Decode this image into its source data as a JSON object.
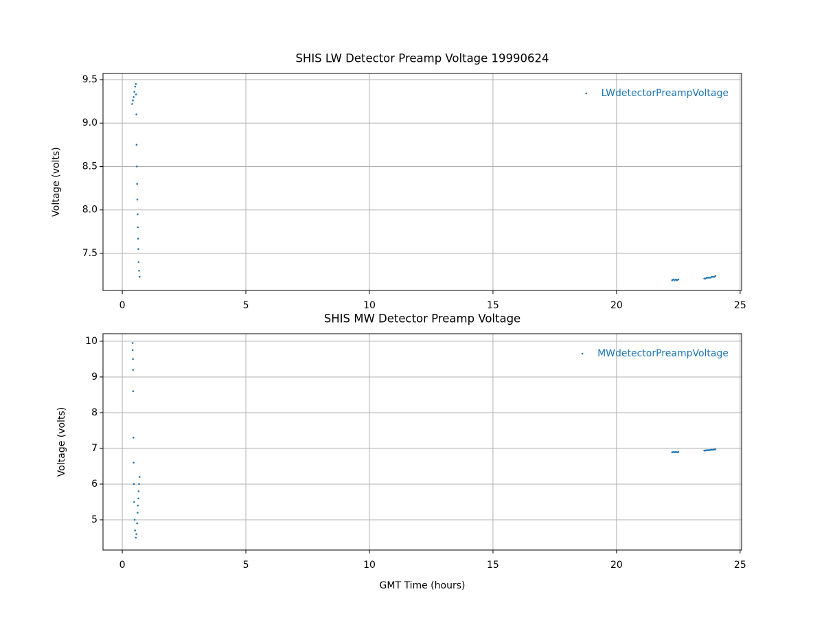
{
  "chart_data": [
    {
      "type": "scatter",
      "title": "SHIS LW Detector Preamp Voltage 19990624",
      "ylabel": "Voltage (volts)",
      "xlim": [
        -0.78,
        25.06
      ],
      "xticks": [
        0,
        5,
        10,
        15,
        20,
        25
      ],
      "ylim": [
        7.073,
        9.571
      ],
      "yticks": [
        7.5,
        {
          "value": 8,
          "label": "8.0"
        },
        8.5,
        {
          "value": 9,
          "label": "9.0"
        },
        9.5
      ],
      "grid": true,
      "legend": "upper right",
      "x": [
        0.4,
        0.43,
        0.46,
        0.49,
        0.52,
        0.55,
        0.56,
        0.57,
        0.58,
        0.59,
        0.6,
        0.61,
        0.62,
        0.63,
        0.64,
        0.65,
        0.66,
        0.68,
        0.7,
        22.25,
        22.3,
        22.35,
        22.4,
        22.45,
        22.5,
        23.55,
        23.6,
        23.65,
        23.7,
        23.75,
        23.8,
        23.85,
        23.9,
        23.95,
        24.0
      ],
      "series": [
        {
          "name": "LWdetectorPreampVoltage",
          "color": "#1f77b4",
          "values": [
            9.22,
            9.26,
            9.3,
            9.36,
            9.42,
            9.45,
            9.33,
            9.1,
            8.75,
            8.5,
            8.3,
            8.12,
            7.95,
            7.8,
            7.67,
            7.55,
            7.4,
            7.3,
            7.23,
            7.19,
            7.2,
            7.19,
            7.2,
            7.19,
            7.2,
            7.21,
            7.21,
            7.22,
            7.22,
            7.22,
            7.22,
            7.23,
            7.23,
            7.23,
            7.24
          ]
        }
      ]
    },
    {
      "type": "scatter",
      "title": "SHIS MW Detector Preamp Voltage",
      "ylabel": "Voltage (volts)",
      "xlabel": "GMT Time (hours)",
      "xlim": [
        -0.78,
        25.06
      ],
      "xticks": [
        0,
        5,
        10,
        15,
        20,
        25
      ],
      "ylim": [
        4.154,
        10.21
      ],
      "yticks": [
        5,
        6,
        7,
        8,
        9,
        10
      ],
      "grid": true,
      "legend": "upper right",
      "x": [
        0.42,
        0.42,
        0.43,
        0.44,
        0.44,
        0.45,
        0.46,
        0.47,
        0.48,
        0.5,
        0.52,
        0.55,
        0.57,
        0.6,
        0.62,
        0.63,
        0.65,
        0.66,
        0.68,
        0.7,
        22.25,
        22.3,
        22.35,
        22.4,
        22.45,
        22.5,
        23.55,
        23.6,
        23.65,
        23.7,
        23.75,
        23.8,
        23.85,
        23.9,
        23.95,
        24.0
      ],
      "series": [
        {
          "name": "MWdetectorPreampVoltage",
          "color": "#1f77b4",
          "values": [
            9.95,
            9.75,
            9.5,
            9.2,
            8.6,
            7.3,
            6.6,
            6.0,
            5.5,
            5.0,
            4.7,
            4.5,
            4.6,
            4.9,
            5.2,
            5.4,
            5.6,
            5.8,
            6.0,
            6.2,
            6.89,
            6.9,
            6.89,
            6.9,
            6.89,
            6.9,
            6.94,
            6.94,
            6.95,
            6.95,
            6.95,
            6.96,
            6.96,
            6.96,
            6.97,
            6.97
          ]
        }
      ]
    }
  ]
}
